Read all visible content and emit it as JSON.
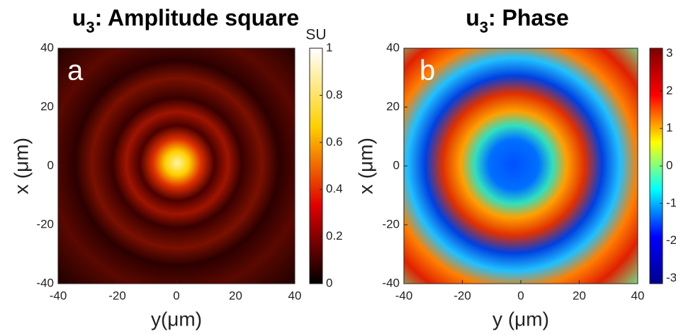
{
  "chart_data": [
    {
      "type": "heatmap",
      "title": {
        "base": "u",
        "sub": "3",
        "rest": ": Amplitude square"
      },
      "panel_label": "a",
      "xlabel": "y(μm)",
      "ylabel": "x (μm)",
      "xlim": [
        -40,
        40
      ],
      "xticks": [
        -40,
        -20,
        0,
        20,
        40
      ],
      "ylim": [
        -40,
        40
      ],
      "yticks": [
        -40,
        -20,
        0,
        20,
        40
      ],
      "colormap": "hot",
      "colorbar": {
        "label": "SU",
        "lim": [
          0,
          1
        ],
        "ticks": [
          0,
          0.2,
          0.4,
          0.6,
          0.8,
          1
        ]
      }
    },
    {
      "type": "heatmap",
      "title": {
        "base": "u",
        "sub": "3",
        "rest": ": Phase"
      },
      "panel_label": "b",
      "xlabel": "y (μm)",
      "ylabel": "x (μm)",
      "xlim": [
        -40,
        40
      ],
      "xticks": [
        -40,
        -20,
        0,
        20,
        40
      ],
      "ylim": [
        -40,
        40
      ],
      "yticks": [
        -40,
        -20,
        0,
        20,
        40
      ],
      "colormap": "jet",
      "colorbar": {
        "lim": [
          -3.14,
          3.14
        ],
        "ticks": [
          -3,
          -2,
          -1,
          0,
          1,
          2,
          3
        ]
      }
    }
  ]
}
